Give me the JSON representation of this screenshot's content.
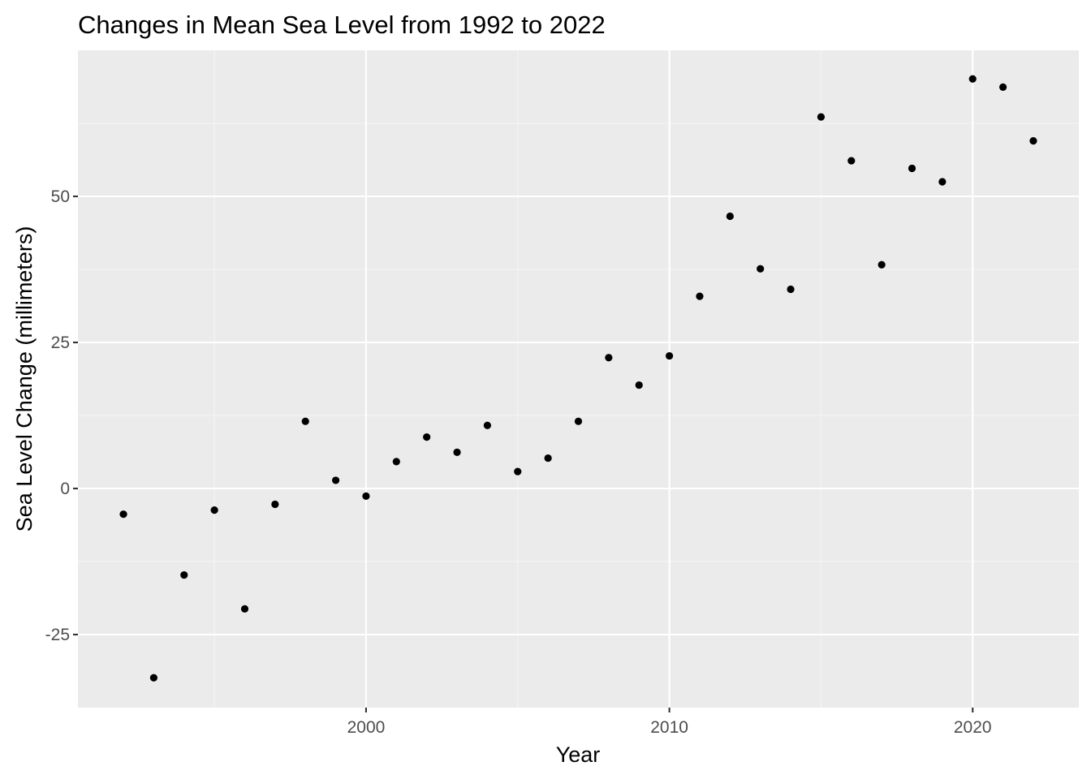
{
  "chart_data": {
    "type": "scatter",
    "title": "Changes in Mean Sea Level from 1992 to 2022",
    "xlabel": "Year",
    "ylabel": "Sea Level Change (millimeters)",
    "x_ticks": [
      2000,
      2010,
      2020
    ],
    "y_ticks": [
      -25,
      0,
      25,
      50
    ],
    "xlim": [
      1990.5,
      2023.5
    ],
    "ylim": [
      -37.5,
      75
    ],
    "grid": true,
    "legend": "none",
    "colors": {
      "panel_background": "#ebebeb",
      "grid_major": "#ffffff",
      "grid_minor": "#f5f5f5",
      "point": "#000000",
      "tick_text": "#4d4d4d"
    },
    "series": [
      {
        "x": [
          1992,
          1993,
          1994,
          1995,
          1996,
          1997,
          1998,
          1999,
          2000,
          2001,
          2002,
          2003,
          2004,
          2005,
          2006,
          2007,
          2008,
          2009,
          2010,
          2011,
          2012,
          2013,
          2014,
          2015,
          2016,
          2017,
          2018,
          2019,
          2020,
          2021,
          2022
        ],
        "y": [
          -4.4,
          -32.4,
          -14.8,
          -3.7,
          -20.6,
          -2.7,
          11.5,
          1.4,
          -1.3,
          4.6,
          8.8,
          6.2,
          10.8,
          2.9,
          5.2,
          11.5,
          22.4,
          17.7,
          22.7,
          32.9,
          46.6,
          37.6,
          34.1,
          63.6,
          56.1,
          38.3,
          54.8,
          52.5,
          70.1,
          68.7,
          59.5
        ]
      }
    ]
  }
}
